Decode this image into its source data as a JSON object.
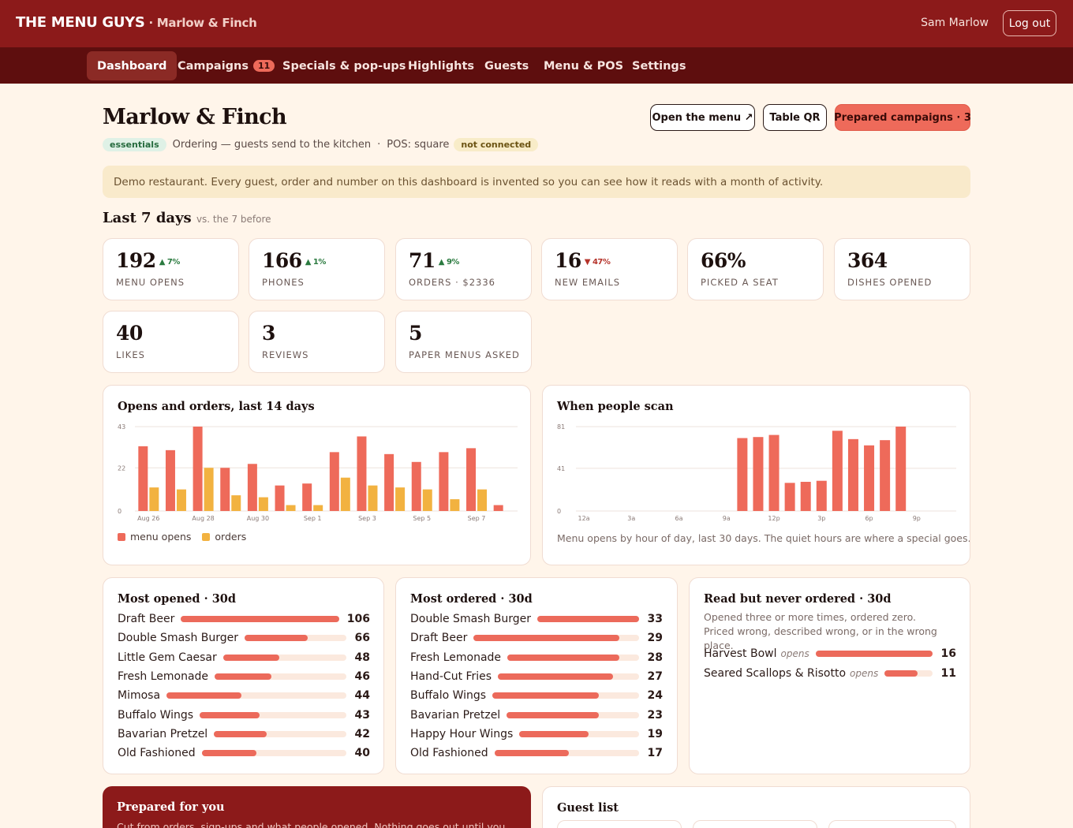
{
  "brand": {
    "name": "THE MENU GUYS",
    "restaurant": " · Marlow & Finch"
  },
  "user": {
    "name": "Sam Marlow",
    "logout": "Log out"
  },
  "nav": [
    {
      "label": "Dashboard",
      "active": true
    },
    {
      "label": "Campaigns",
      "badge": "11"
    },
    {
      "label": "Specials & pop-ups"
    },
    {
      "label": "Highlights"
    },
    {
      "label": "Guests"
    },
    {
      "label": "Menu & POS"
    },
    {
      "label": "Settings"
    }
  ],
  "page": {
    "title": "Marlow & Finch",
    "buttons": {
      "open_menu": "Open the menu ↗",
      "table_qr": "Table QR",
      "prepared": "Prepared campaigns · 3"
    },
    "plan": "essentials",
    "ordering": "Ordering — guests send to the kitchen",
    "pos": "POS: square",
    "pos_status": "not connected",
    "notice": "Demo restaurant. Every guest, order and number on this dashboard is invented so you can see how it reads with a month of activity."
  },
  "last7": {
    "title": "Last 7 days",
    "subtitle": "vs. the 7 before",
    "kpis": [
      {
        "value": "192",
        "delta": "▲ 7%",
        "dir": "up",
        "label": "MENU OPENS"
      },
      {
        "value": "166",
        "delta": "▲ 1%",
        "dir": "up",
        "label": "PHONES"
      },
      {
        "value": "71",
        "delta": "▲ 9%",
        "dir": "up",
        "label": "ORDERS · $2336"
      },
      {
        "value": "16",
        "delta": "▼ 47%",
        "dir": "down",
        "label": "NEW EMAILS"
      },
      {
        "value": "66%",
        "delta": "",
        "dir": "",
        "label": "PICKED A SEAT"
      },
      {
        "value": "364",
        "delta": "",
        "dir": "",
        "label": "DISHES OPENED"
      },
      {
        "value": "40",
        "delta": "",
        "dir": "",
        "label": "LIKES"
      },
      {
        "value": "3",
        "delta": "",
        "dir": "",
        "label": "REVIEWS"
      },
      {
        "value": "5",
        "delta": "",
        "dir": "",
        "label": "PAPER MENUS ASKED"
      }
    ]
  },
  "chart_data": [
    {
      "type": "bar",
      "title": "Opens and orders, last 14 days",
      "categories": [
        "Aug 26",
        "Aug 27",
        "Aug 28",
        "Aug 29",
        "Aug 30",
        "Aug 31",
        "Sep 1",
        "Sep 2",
        "Sep 3",
        "Sep 4",
        "Sep 5",
        "Sep 6",
        "Sep 7",
        "Sep 8"
      ],
      "tick_labels": [
        "Aug 26",
        "",
        "Aug 28",
        "",
        "Aug 30",
        "",
        "Sep 1",
        "",
        "Sep 3",
        "",
        "Sep 5",
        "",
        "Sep 7",
        ""
      ],
      "yticks": [
        "43",
        "22",
        "0"
      ],
      "ylim": [
        0,
        43
      ],
      "series": [
        {
          "name": "menu opens",
          "color": "#ee6a5a",
          "values": [
            33,
            31,
            43,
            22,
            24,
            13,
            14,
            30,
            38,
            29,
            25,
            30,
            32,
            3
          ]
        },
        {
          "name": "orders",
          "color": "#f2b240",
          "values": [
            12,
            11,
            22,
            8,
            7,
            3,
            3,
            17,
            13,
            12,
            11,
            6,
            11,
            0
          ]
        }
      ],
      "legend": "bottom-left",
      "grid": true
    },
    {
      "type": "bar",
      "title": "When people scan",
      "categories": [
        "12a",
        "1a",
        "2a",
        "3a",
        "4a",
        "5a",
        "6a",
        "7a",
        "8a",
        "9a",
        "10a",
        "11a",
        "12p",
        "1p",
        "2p",
        "3p",
        "4p",
        "5p",
        "6p",
        "7p",
        "8p",
        "9p",
        "10p",
        "11p"
      ],
      "tick_labels": [
        "12a",
        "",
        "",
        "3a",
        "",
        "",
        "6a",
        "",
        "",
        "9a",
        "",
        "",
        "12p",
        "",
        "",
        "3p",
        "",
        "",
        "6p",
        "",
        "",
        "9p",
        "",
        ""
      ],
      "yticks": [
        "81",
        "41",
        "0"
      ],
      "ylim": [
        0,
        81
      ],
      "series": [
        {
          "name": "menu opens",
          "color": "#ee6a5a",
          "values": [
            0,
            0,
            0,
            0,
            0,
            0,
            0,
            0,
            0,
            0,
            70,
            71,
            73,
            27,
            28,
            29,
            77,
            69,
            63,
            68,
            81,
            0,
            0,
            0
          ]
        }
      ],
      "grid": true,
      "note": "Menu opens by hour of day, last 30 days. The quiet hours are where a special goes."
    }
  ],
  "most_opened": {
    "title": "Most opened · 30d",
    "max": 106,
    "items": [
      {
        "name": "Draft Beer",
        "value": 106
      },
      {
        "name": "Double Smash Burger",
        "value": 66
      },
      {
        "name": "Little Gem Caesar",
        "value": 48
      },
      {
        "name": "Fresh Lemonade",
        "value": 46
      },
      {
        "name": "Mimosa",
        "value": 44
      },
      {
        "name": "Buffalo Wings",
        "value": 43
      },
      {
        "name": "Bavarian Pretzel",
        "value": 42
      },
      {
        "name": "Old Fashioned",
        "value": 40
      }
    ]
  },
  "most_ordered": {
    "title": "Most ordered · 30d",
    "max": 33,
    "items": [
      {
        "name": "Double Smash Burger",
        "value": 33
      },
      {
        "name": "Draft Beer",
        "value": 29
      },
      {
        "name": "Fresh Lemonade",
        "value": 28
      },
      {
        "name": "Hand-Cut Fries",
        "value": 27
      },
      {
        "name": "Buffalo Wings",
        "value": 24
      },
      {
        "name": "Bavarian Pretzel",
        "value": 23
      },
      {
        "name": "Happy Hour Wings",
        "value": 19
      },
      {
        "name": "Old Fashioned",
        "value": 17
      }
    ]
  },
  "never_ordered": {
    "title": "Read but never ordered · 30d",
    "desc": "Opened three or more times, ordered zero. Priced wrong, described wrong, or in the wrong place.",
    "max": 16,
    "items": [
      {
        "name": "Harvest Bowl",
        "note": "opens",
        "value": 16
      },
      {
        "name": "Seared Scallops & Risotto",
        "note": "opens",
        "value": 11
      }
    ]
  },
  "prepared": {
    "title": "Prepared for you",
    "sub": "Cut from orders, sign-ups and what people opened. Nothing goes out until you"
  },
  "guest_list": {
    "title": "Guest list"
  }
}
